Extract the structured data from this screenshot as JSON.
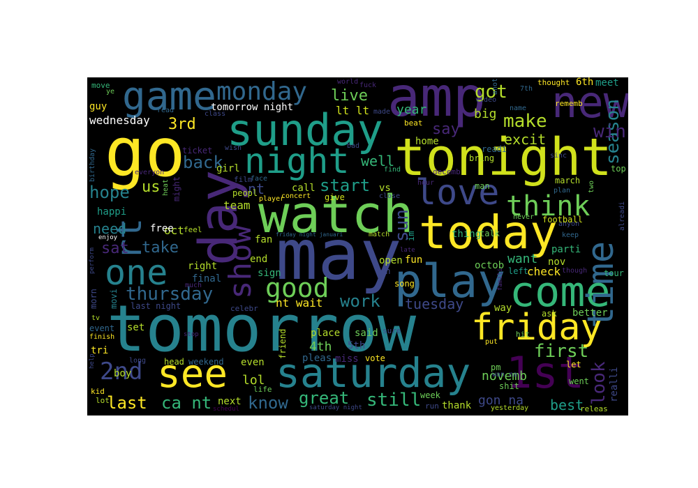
{
  "colors": {
    "background": "#000000",
    "frame": "#ffffff",
    "palette": [
      "#fde725",
      "#b5de2b",
      "#6ece58",
      "#35b779",
      "#1f9e89",
      "#26828e",
      "#31688e",
      "#3e4989",
      "#482878",
      "#440154"
    ]
  },
  "words": [
    {
      "text": "tomorrow",
      "c": "#26828e"
    },
    {
      "text": "may",
      "c": "#3e4989"
    },
    {
      "text": "tonight",
      "c": "#d0e11c"
    },
    {
      "text": "go",
      "c": "#fde725"
    },
    {
      "text": "watch",
      "c": "#6ece58"
    },
    {
      "text": "day",
      "c": "#482878"
    },
    {
      "text": "amp",
      "c": "#482878"
    },
    {
      "text": "sunday",
      "c": "#1f9e89"
    },
    {
      "text": "today",
      "c": "#fde725"
    },
    {
      "text": "saturday",
      "c": "#26828e"
    },
    {
      "text": "game",
      "c": "#31688e"
    },
    {
      "text": "friday",
      "c": "#fde725"
    },
    {
      "text": "play",
      "c": "#31688e"
    },
    {
      "text": "come",
      "c": "#35b779"
    },
    {
      "text": "new",
      "c": "#482878"
    },
    {
      "text": "night",
      "c": "#1f9e89"
    },
    {
      "text": "love",
      "c": "#3e4989"
    },
    {
      "text": "time",
      "c": "#31688e"
    },
    {
      "text": "see",
      "c": "#fde725"
    },
    {
      "text": "1st",
      "c": "#440154"
    },
    {
      "text": "one",
      "c": "#26828e"
    },
    {
      "text": "show",
      "c": "#482878"
    },
    {
      "text": "rt",
      "c": "#31688e"
    },
    {
      "text": "monday",
      "c": "#31688e"
    },
    {
      "text": "good",
      "c": "#6ece58"
    },
    {
      "text": "think",
      "c": "#6ece58"
    },
    {
      "text": "2nd",
      "c": "#3e4989"
    },
    {
      "text": "thursday",
      "c": "#31688e"
    },
    {
      "text": "season",
      "c": "#26828e"
    },
    {
      "text": "sun",
      "c": "#3e4989"
    },
    {
      "text": "great",
      "c": "#35b779"
    },
    {
      "text": "still",
      "c": "#35b779"
    },
    {
      "text": "last",
      "c": "#fde725"
    },
    {
      "text": "ca nt",
      "c": "#35b779"
    },
    {
      "text": "know",
      "c": "#31688e"
    },
    {
      "text": "first",
      "c": "#6ece58"
    },
    {
      "text": "look",
      "c": "#482878"
    },
    {
      "text": "got",
      "c": "#b5de2b"
    },
    {
      "text": "make",
      "c": "#b5de2b"
    },
    {
      "text": "work",
      "c": "#26828e"
    },
    {
      "text": "tuesday",
      "c": "#3e4989"
    },
    {
      "text": "win",
      "c": "#482878"
    },
    {
      "text": "hope",
      "c": "#26828e"
    },
    {
      "text": "back",
      "c": "#31688e"
    },
    {
      "text": "start",
      "c": "#1f9e89"
    },
    {
      "text": "live",
      "c": "#6ece58"
    },
    {
      "text": "say",
      "c": "#482878"
    },
    {
      "text": "take",
      "c": "#31688e"
    },
    {
      "text": "need",
      "c": "#26828e"
    },
    {
      "text": "sat",
      "c": "#482878"
    },
    {
      "text": "3rd",
      "c": "#fde725"
    },
    {
      "text": "us",
      "c": "#b5de2b"
    },
    {
      "text": "well",
      "c": "#35b779"
    },
    {
      "text": "nt",
      "c": "#3e4989"
    },
    {
      "text": "wednesday",
      "c": "#ffffff"
    },
    {
      "text": "excit",
      "c": "#b5de2b"
    },
    {
      "text": "big",
      "c": "#b5de2b"
    },
    {
      "text": "novemb",
      "c": "#6ece58"
    },
    {
      "text": "best",
      "c": "#1f9e89"
    },
    {
      "text": "gon na",
      "c": "#3e4989"
    },
    {
      "text": "lol",
      "c": "#b5de2b"
    },
    {
      "text": "4th",
      "c": "#6ece58"
    },
    {
      "text": "want",
      "c": "#35b779"
    },
    {
      "text": "year",
      "c": "#35b779"
    },
    {
      "text": "lt lt",
      "c": "#d0e11c"
    },
    {
      "text": "team",
      "c": "#b5de2b"
    },
    {
      "text": "oct",
      "c": "#b5de2b"
    },
    {
      "text": "tomorrow night",
      "c": "#ffffff"
    },
    {
      "text": "free",
      "c": "#ffffff"
    },
    {
      "text": "happi",
      "c": "#1f9e89"
    },
    {
      "text": "right",
      "c": "#b5de2b"
    },
    {
      "text": "final",
      "c": "#31688e"
    },
    {
      "text": "last night",
      "c": "#3e4989"
    },
    {
      "text": "guy",
      "c": "#fde725"
    },
    {
      "text": "move",
      "c": "#35b779"
    },
    {
      "text": "ye",
      "c": "#6ece58"
    },
    {
      "text": "read",
      "c": "#31688e"
    },
    {
      "text": "class",
      "c": "#3e4989"
    },
    {
      "text": "made",
      "c": "#3e4989"
    },
    {
      "text": "world",
      "c": "#482878"
    },
    {
      "text": "fuck",
      "c": "#482878"
    },
    {
      "text": "video",
      "c": "#3e4989"
    },
    {
      "text": "anoth",
      "c": "#31688e"
    },
    {
      "text": "7th",
      "c": "#31688e"
    },
    {
      "text": "thought",
      "c": "#fde725"
    },
    {
      "text": "6th",
      "c": "#fde725"
    },
    {
      "text": "meet",
      "c": "#1f9e89"
    },
    {
      "text": "name",
      "c": "#31688e"
    },
    {
      "text": "rememb",
      "c": "#fde725"
    },
    {
      "text": "readi",
      "c": "#31688e"
    },
    {
      "text": "beat",
      "c": "#fde725"
    },
    {
      "text": "home",
      "c": "#b5de2b"
    },
    {
      "text": "bring",
      "c": "#b5de2b"
    },
    {
      "text": "sinc",
      "c": "#3e4989"
    },
    {
      "text": "ticket",
      "c": "#482878"
    },
    {
      "text": "wish",
      "c": "#3e4989"
    },
    {
      "text": "girl",
      "c": "#b5de2b"
    },
    {
      "text": "bad",
      "c": "#3e4989"
    },
    {
      "text": "find",
      "c": "#35b779"
    },
    {
      "text": "everyon",
      "c": "#482878"
    },
    {
      "text": "birthday",
      "c": "#31688e"
    },
    {
      "text": "heat",
      "c": "#6ece58"
    },
    {
      "text": "might",
      "c": "#482878"
    },
    {
      "text": "film",
      "c": "#3e4989"
    },
    {
      "text": "face",
      "c": "#31688e"
    },
    {
      "text": "peopl",
      "c": "#b5de2b"
    },
    {
      "text": "call",
      "c": "#b5de2b"
    },
    {
      "text": "vs",
      "c": "#b5de2b"
    },
    {
      "text": "player",
      "c": "#fde725"
    },
    {
      "text": "concert",
      "c": "#fde725"
    },
    {
      "text": "close",
      "c": "#3e4989"
    },
    {
      "text": "give",
      "c": "#d0e11c"
    },
    {
      "text": "hour",
      "c": "#482878"
    },
    {
      "text": "decemb",
      "c": "#482878"
    },
    {
      "text": "man",
      "c": "#6ece58"
    },
    {
      "text": "march",
      "c": "#b5de2b"
    },
    {
      "text": "plan",
      "c": "#31688e"
    },
    {
      "text": "two",
      "c": "#6ece58"
    },
    {
      "text": "top",
      "c": "#6ece58"
    },
    {
      "text": "alreadi",
      "c": "#3e4989"
    },
    {
      "text": "anyon",
      "c": "#3e4989"
    },
    {
      "text": "keep",
      "c": "#31688e"
    },
    {
      "text": "thing",
      "c": "#35b779"
    },
    {
      "text": "talk",
      "c": "#6ece58"
    },
    {
      "text": "never",
      "c": "#6ece58"
    },
    {
      "text": "football",
      "c": "#d0e11c"
    },
    {
      "text": "parti",
      "c": "#35b779"
    },
    {
      "text": "nov",
      "c": "#b5de2b"
    },
    {
      "text": "octob",
      "c": "#6ece58"
    },
    {
      "text": "feel",
      "c": "#b5de2b"
    },
    {
      "text": "fan",
      "c": "#b5de2b"
    },
    {
      "text": "friday night januari",
      "c": "#31688e"
    },
    {
      "text": "match",
      "c": "#b5de2b"
    },
    {
      "text": "late",
      "c": "#482878"
    },
    {
      "text": "im",
      "c": "#1f9e89"
    },
    {
      "text": "enjoy",
      "c": "#ffffff"
    },
    {
      "text": "perform",
      "c": "#3e4989"
    },
    {
      "text": "end",
      "c": "#b5de2b"
    },
    {
      "text": "open",
      "c": "#b5de2b"
    },
    {
      "text": "fun",
      "c": "#fde725"
    },
    {
      "text": "oh",
      "c": "#3e4989"
    },
    {
      "text": "check",
      "c": "#fde725"
    },
    {
      "text": "though",
      "c": "#482878"
    },
    {
      "text": "left",
      "c": "#1f9e89"
    },
    {
      "text": "tour",
      "c": "#35b779"
    },
    {
      "text": "famili",
      "c": "#482878"
    },
    {
      "text": "sign",
      "c": "#35b779"
    },
    {
      "text": "much",
      "c": "#482878"
    },
    {
      "text": "song",
      "c": "#fde725"
    },
    {
      "text": "morn",
      "c": "#3e4989"
    },
    {
      "text": "movi",
      "c": "#26828e"
    },
    {
      "text": "celebr",
      "c": "#3e4989"
    },
    {
      "text": "nt wait",
      "c": "#fde725"
    },
    {
      "text": "way",
      "c": "#b5de2b"
    },
    {
      "text": "better",
      "c": "#6ece58"
    },
    {
      "text": "ask",
      "c": "#b5de2b"
    },
    {
      "text": "tv",
      "c": "#b5de2b"
    },
    {
      "text": "event",
      "c": "#31688e"
    },
    {
      "text": "set",
      "c": "#b5de2b"
    },
    {
      "text": "finish",
      "c": "#fde725"
    },
    {
      "text": "stop",
      "c": "#482878"
    },
    {
      "text": "place",
      "c": "#b5de2b"
    },
    {
      "text": "said",
      "c": "#6ece58"
    },
    {
      "text": "sure",
      "c": "#3e4989"
    },
    {
      "text": "5th",
      "c": "#3e4989"
    },
    {
      "text": "friend",
      "c": "#b5de2b"
    },
    {
      "text": "put",
      "c": "#fde725"
    },
    {
      "text": "hit",
      "c": "#6ece58"
    },
    {
      "text": "let",
      "c": "#fde725"
    },
    {
      "text": "tri",
      "c": "#fde725"
    },
    {
      "text": "long",
      "c": "#3e4989"
    },
    {
      "text": "help",
      "c": "#3e4989"
    },
    {
      "text": "head",
      "c": "#b5de2b"
    },
    {
      "text": "weekend",
      "c": "#31688e"
    },
    {
      "text": "even",
      "c": "#b5de2b"
    },
    {
      "text": "pleas",
      "c": "#31688e"
    },
    {
      "text": "miss",
      "c": "#482878"
    },
    {
      "text": "vote",
      "c": "#fde725"
    },
    {
      "text": "pm",
      "c": "#6ece58"
    },
    {
      "text": "wan na",
      "c": "#3e4989"
    },
    {
      "text": "shit",
      "c": "#6ece58"
    },
    {
      "text": "went",
      "c": "#6ece58"
    },
    {
      "text": "realli",
      "c": "#3e4989"
    },
    {
      "text": "boy",
      "c": "#b5de2b"
    },
    {
      "text": "kid",
      "c": "#fde725"
    },
    {
      "text": "lot",
      "c": "#b5de2b"
    },
    {
      "text": "schedul",
      "c": "#440154"
    },
    {
      "text": "next",
      "c": "#b5de2b"
    },
    {
      "text": "life",
      "c": "#6ece58"
    },
    {
      "text": "saturday night",
      "c": "#3e4989"
    },
    {
      "text": "week",
      "c": "#6ece58"
    },
    {
      "text": "run",
      "c": "#3e4989"
    },
    {
      "text": "thank",
      "c": "#b5de2b"
    },
    {
      "text": "yesterday",
      "c": "#b5de2b"
    },
    {
      "text": "releas",
      "c": "#b5de2b"
    }
  ]
}
